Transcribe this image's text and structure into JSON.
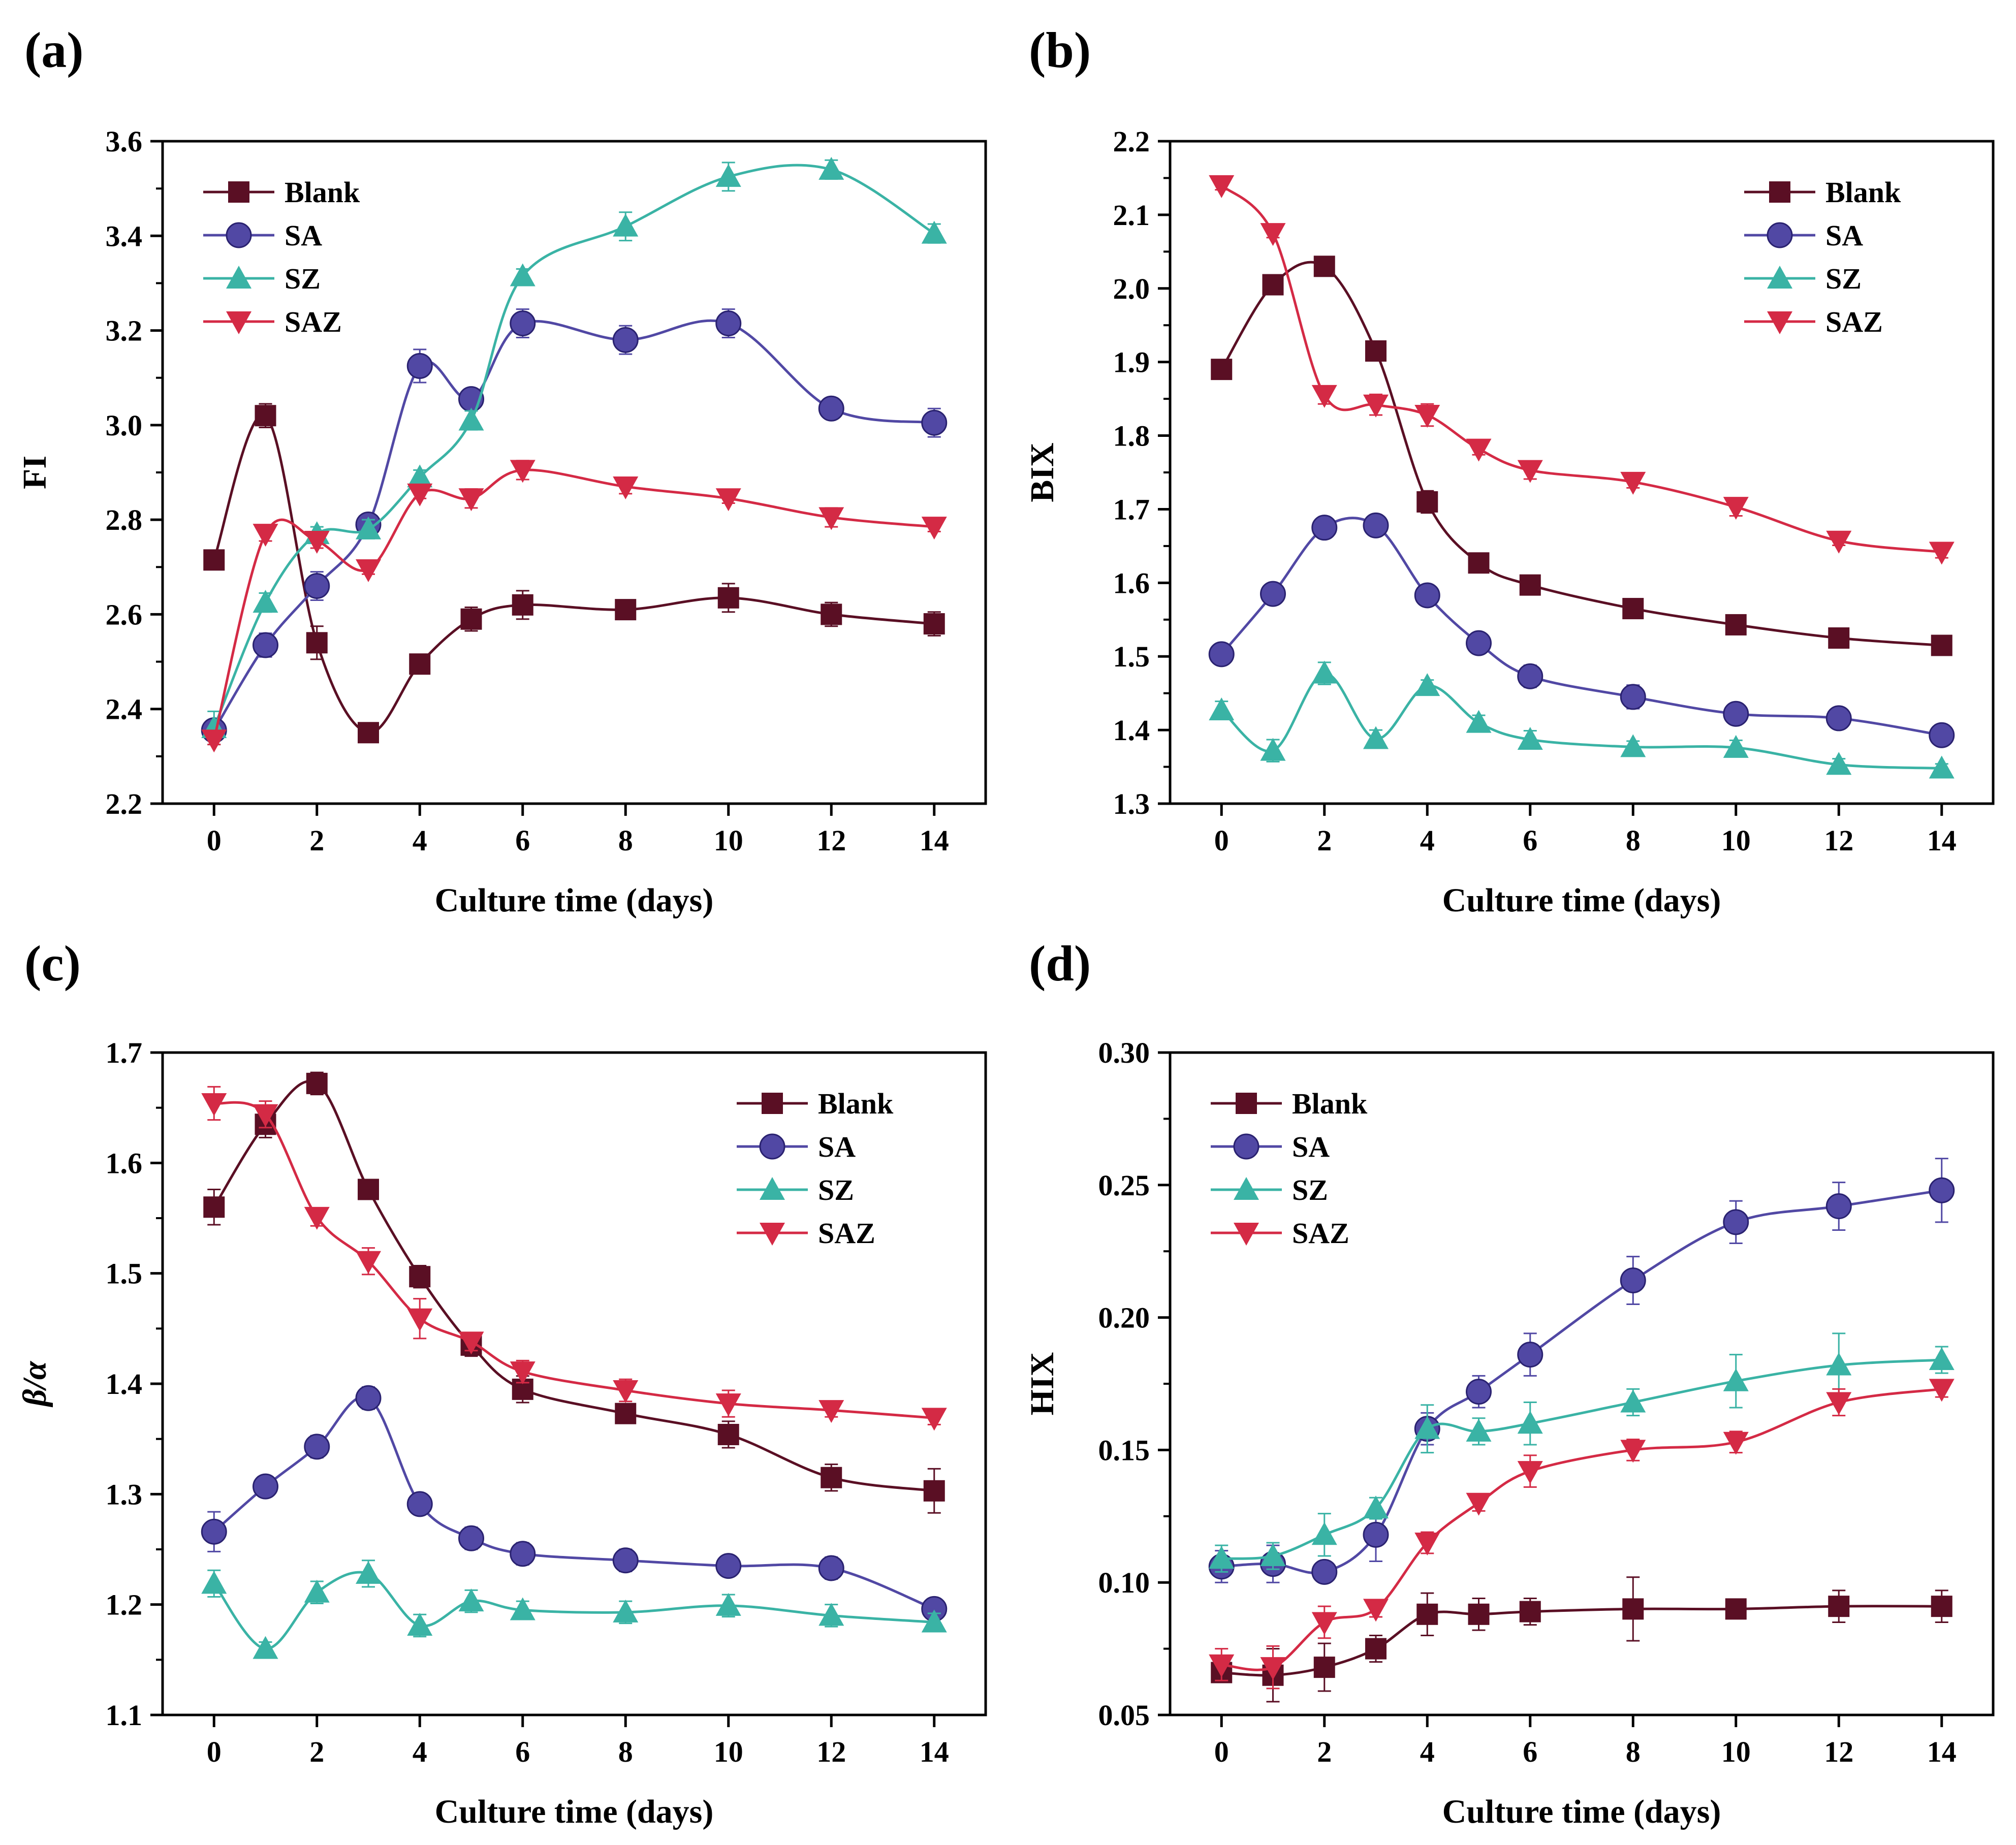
{
  "chart_data": [
    {
      "panel": "(a)",
      "type": "line",
      "title": "",
      "xlabel": "Culture time (days)",
      "ylabel": "FI",
      "ylabel_italic": false,
      "xlim": [
        -1,
        15
      ],
      "ylim": [
        2.2,
        3.6
      ],
      "xticks": [
        0,
        2,
        4,
        6,
        8,
        10,
        12,
        14
      ],
      "xtick_labels": [
        "0",
        "2",
        "4",
        "6",
        "8",
        "10",
        "12",
        "14"
      ],
      "yticks": [
        2.2,
        2.4,
        2.6,
        2.8,
        3.0,
        3.2,
        3.4,
        3.6
      ],
      "ytick_labels": [
        "2.2",
        "2.4",
        "2.6",
        "2.8",
        "3.0",
        "3.2",
        "3.4",
        "3.6"
      ],
      "legend_position": "top-left",
      "x": [
        0,
        1,
        2,
        3,
        4,
        5,
        6,
        8,
        10,
        12,
        14
      ],
      "series": [
        {
          "name": "Blank",
          "color": "#5a0f24",
          "marker": "square",
          "values": [
            2.715,
            3.02,
            2.54,
            2.35,
            2.495,
            2.59,
            2.62,
            2.61,
            2.635,
            2.6,
            2.58
          ],
          "errors": [
            0.0,
            0.025,
            0.035,
            0.015,
            0.02,
            0.025,
            0.03,
            0.02,
            0.03,
            0.025,
            0.025
          ]
        },
        {
          "name": "SA",
          "color": "#5148a4",
          "marker": "circle",
          "values": [
            2.355,
            2.535,
            2.66,
            2.79,
            3.125,
            3.055,
            3.215,
            3.18,
            3.215,
            3.035,
            3.005
          ],
          "errors": [
            0.02,
            0.025,
            0.03,
            0.015,
            0.035,
            0.02,
            0.03,
            0.03,
            0.03,
            0.02,
            0.03
          ]
        },
        {
          "name": "SZ",
          "color": "#3ab3a5",
          "marker": "triangle-up",
          "values": [
            2.36,
            2.625,
            2.77,
            2.78,
            2.89,
            3.01,
            3.315,
            3.42,
            3.525,
            3.54,
            3.405
          ],
          "errors": [
            0.035,
            0.02,
            0.015,
            0.02,
            0.015,
            0.02,
            0.015,
            0.03,
            0.03,
            0.02,
            0.02
          ]
        },
        {
          "name": "SAZ",
          "color": "#d42a45",
          "marker": "triangle-down",
          "values": [
            2.335,
            2.77,
            2.755,
            2.695,
            2.855,
            2.845,
            2.905,
            2.87,
            2.845,
            2.805,
            2.785
          ],
          "errors": [
            0.01,
            0.015,
            0.015,
            0.01,
            0.01,
            0.02,
            0.02,
            0.015,
            0.01,
            0.02,
            0.01
          ]
        }
      ]
    },
    {
      "panel": "(b)",
      "type": "line",
      "title": "",
      "xlabel": "Culture time (days)",
      "ylabel": "BIX",
      "ylabel_italic": false,
      "xlim": [
        -1,
        15
      ],
      "ylim": [
        1.3,
        2.2
      ],
      "xticks": [
        0,
        2,
        4,
        6,
        8,
        10,
        12,
        14
      ],
      "xtick_labels": [
        "0",
        "2",
        "4",
        "6",
        "8",
        "10",
        "12",
        "14"
      ],
      "yticks": [
        1.3,
        1.4,
        1.5,
        1.6,
        1.7,
        1.8,
        1.9,
        2.0,
        2.1,
        2.2
      ],
      "ytick_labels": [
        "1.3",
        "1.4",
        "1.5",
        "1.6",
        "1.7",
        "1.8",
        "1.9",
        "2.0",
        "2.1",
        "2.2"
      ],
      "legend_position": "top-right",
      "x": [
        0,
        1,
        2,
        3,
        4,
        5,
        6,
        8,
        10,
        12,
        14
      ],
      "series": [
        {
          "name": "Blank",
          "color": "#5a0f24",
          "marker": "square",
          "values": [
            1.89,
            2.005,
            2.03,
            1.915,
            1.71,
            1.627,
            1.597,
            1.565,
            1.543,
            1.525,
            1.515
          ],
          "errors": [
            0.005,
            0.005,
            0.008,
            0.005,
            0.015,
            0.008,
            0.006,
            0.008,
            0.01,
            0.006,
            0.006
          ]
        },
        {
          "name": "SA",
          "color": "#5148a4",
          "marker": "circle",
          "values": [
            1.503,
            1.585,
            1.675,
            1.678,
            1.583,
            1.518,
            1.473,
            1.445,
            1.422,
            1.416,
            1.393
          ],
          "errors": [
            0.005,
            0.008,
            0.008,
            0.01,
            0.012,
            0.014,
            0.015,
            0.016,
            0.01,
            0.008,
            0.014
          ]
        },
        {
          "name": "SZ",
          "color": "#3ab3a5",
          "marker": "triangle-up",
          "values": [
            1.427,
            1.372,
            1.477,
            1.388,
            1.46,
            1.41,
            1.387,
            1.377,
            1.376,
            1.353,
            1.348
          ],
          "errors": [
            0.012,
            0.015,
            0.015,
            0.012,
            0.008,
            0.01,
            0.012,
            0.008,
            0.01,
            0.008,
            0.006
          ]
        },
        {
          "name": "SAZ",
          "color": "#d42a45",
          "marker": "triangle-down",
          "values": [
            2.14,
            2.075,
            1.855,
            1.842,
            1.828,
            1.782,
            1.753,
            1.737,
            1.703,
            1.657,
            1.642
          ],
          "errors": [
            0.006,
            0.006,
            0.012,
            0.014,
            0.015,
            0.008,
            0.012,
            0.008,
            0.012,
            0.006,
            0.008
          ]
        }
      ]
    },
    {
      "panel": "(c)",
      "type": "line",
      "title": "",
      "xlabel": "Culture time (days)",
      "ylabel": "β/α",
      "ylabel_italic": true,
      "xlim": [
        -1,
        15
      ],
      "ylim": [
        1.1,
        1.7
      ],
      "xticks": [
        0,
        2,
        4,
        6,
        8,
        10,
        12,
        14
      ],
      "xtick_labels": [
        "0",
        "2",
        "4",
        "6",
        "8",
        "10",
        "12",
        "14"
      ],
      "yticks": [
        1.1,
        1.2,
        1.3,
        1.4,
        1.5,
        1.6,
        1.7
      ],
      "ytick_labels": [
        "1.1",
        "1.2",
        "1.3",
        "1.4",
        "1.5",
        "1.6",
        "1.7"
      ],
      "legend_position": "top-right",
      "x": [
        0,
        1,
        2,
        3,
        4,
        5,
        6,
        8,
        10,
        12,
        14
      ],
      "series": [
        {
          "name": "Blank",
          "color": "#5a0f24",
          "marker": "square",
          "values": [
            1.56,
            1.635,
            1.672,
            1.576,
            1.497,
            1.435,
            1.395,
            1.373,
            1.354,
            1.315,
            1.303
          ],
          "errors": [
            0.016,
            0.012,
            0.01,
            0.008,
            0.01,
            0.01,
            0.012,
            0.006,
            0.012,
            0.012,
            0.02
          ]
        },
        {
          "name": "SA",
          "color": "#5148a4",
          "marker": "circle",
          "values": [
            1.266,
            1.307,
            1.343,
            1.387,
            1.291,
            1.26,
            1.246,
            1.24,
            1.235,
            1.233,
            1.196
          ],
          "errors": [
            0.018,
            0.005,
            0.01,
            0.01,
            0.006,
            0.01,
            0.01,
            0.01,
            0.008,
            0.01,
            0.008
          ]
        },
        {
          "name": "SZ",
          "color": "#3ab3a5",
          "marker": "triangle-up",
          "values": [
            1.219,
            1.16,
            1.211,
            1.228,
            1.181,
            1.203,
            1.195,
            1.193,
            1.199,
            1.19,
            1.184
          ],
          "errors": [
            0.012,
            0.006,
            0.01,
            0.012,
            0.01,
            0.01,
            0.008,
            0.01,
            0.01,
            0.01,
            0.008
          ]
        },
        {
          "name": "SAZ",
          "color": "#d42a45",
          "marker": "triangle-down",
          "values": [
            1.654,
            1.644,
            1.551,
            1.511,
            1.459,
            1.438,
            1.411,
            1.394,
            1.382,
            1.376,
            1.369
          ],
          "errors": [
            0.015,
            0.012,
            0.008,
            0.012,
            0.018,
            0.008,
            0.01,
            0.01,
            0.012,
            0.006,
            0.006
          ]
        }
      ]
    },
    {
      "panel": "(d)",
      "type": "line",
      "title": "",
      "xlabel": "Culture time (days)",
      "ylabel": "HIX",
      "ylabel_italic": false,
      "xlim": [
        -1,
        15
      ],
      "ylim": [
        0.05,
        0.3
      ],
      "xticks": [
        0,
        2,
        4,
        6,
        8,
        10,
        12,
        14
      ],
      "xtick_labels": [
        "0",
        "2",
        "4",
        "6",
        "8",
        "10",
        "12",
        "14"
      ],
      "yticks": [
        0.05,
        0.1,
        0.15,
        0.2,
        0.25,
        0.3
      ],
      "ytick_labels": [
        "0.05",
        "0.10",
        "0.15",
        "0.20",
        "0.25",
        "0.30"
      ],
      "legend_position": "top-left",
      "x": [
        0,
        1,
        2,
        3,
        4,
        5,
        6,
        8,
        10,
        12,
        14
      ],
      "series": [
        {
          "name": "Blank",
          "color": "#5a0f24",
          "marker": "square",
          "values": [
            0.066,
            0.065,
            0.068,
            0.075,
            0.088,
            0.088,
            0.089,
            0.09,
            0.09,
            0.091,
            0.091
          ],
          "errors": [
            0.003,
            0.01,
            0.009,
            0.005,
            0.008,
            0.006,
            0.005,
            0.012,
            0.002,
            0.006,
            0.006
          ]
        },
        {
          "name": "SA",
          "color": "#5148a4",
          "marker": "circle",
          "values": [
            0.106,
            0.107,
            0.104,
            0.118,
            0.158,
            0.172,
            0.186,
            0.214,
            0.236,
            0.242,
            0.248
          ],
          "errors": [
            0.006,
            0.007,
            0.003,
            0.01,
            0.006,
            0.006,
            0.008,
            0.009,
            0.008,
            0.009,
            0.012
          ]
        },
        {
          "name": "SZ",
          "color": "#3ab3a5",
          "marker": "triangle-up",
          "values": [
            0.109,
            0.11,
            0.118,
            0.128,
            0.158,
            0.157,
            0.16,
            0.168,
            0.176,
            0.182,
            0.184
          ],
          "errors": [
            0.005,
            0.005,
            0.008,
            0.004,
            0.009,
            0.005,
            0.008,
            0.005,
            0.01,
            0.012,
            0.005
          ]
        },
        {
          "name": "SAZ",
          "color": "#d42a45",
          "marker": "triangle-down",
          "values": [
            0.069,
            0.068,
            0.085,
            0.09,
            0.115,
            0.13,
            0.142,
            0.15,
            0.153,
            0.168,
            0.173
          ],
          "errors": [
            0.006,
            0.008,
            0.006,
            0.003,
            0.004,
            0.003,
            0.006,
            0.004,
            0.004,
            0.005,
            0.003
          ]
        }
      ]
    }
  ]
}
